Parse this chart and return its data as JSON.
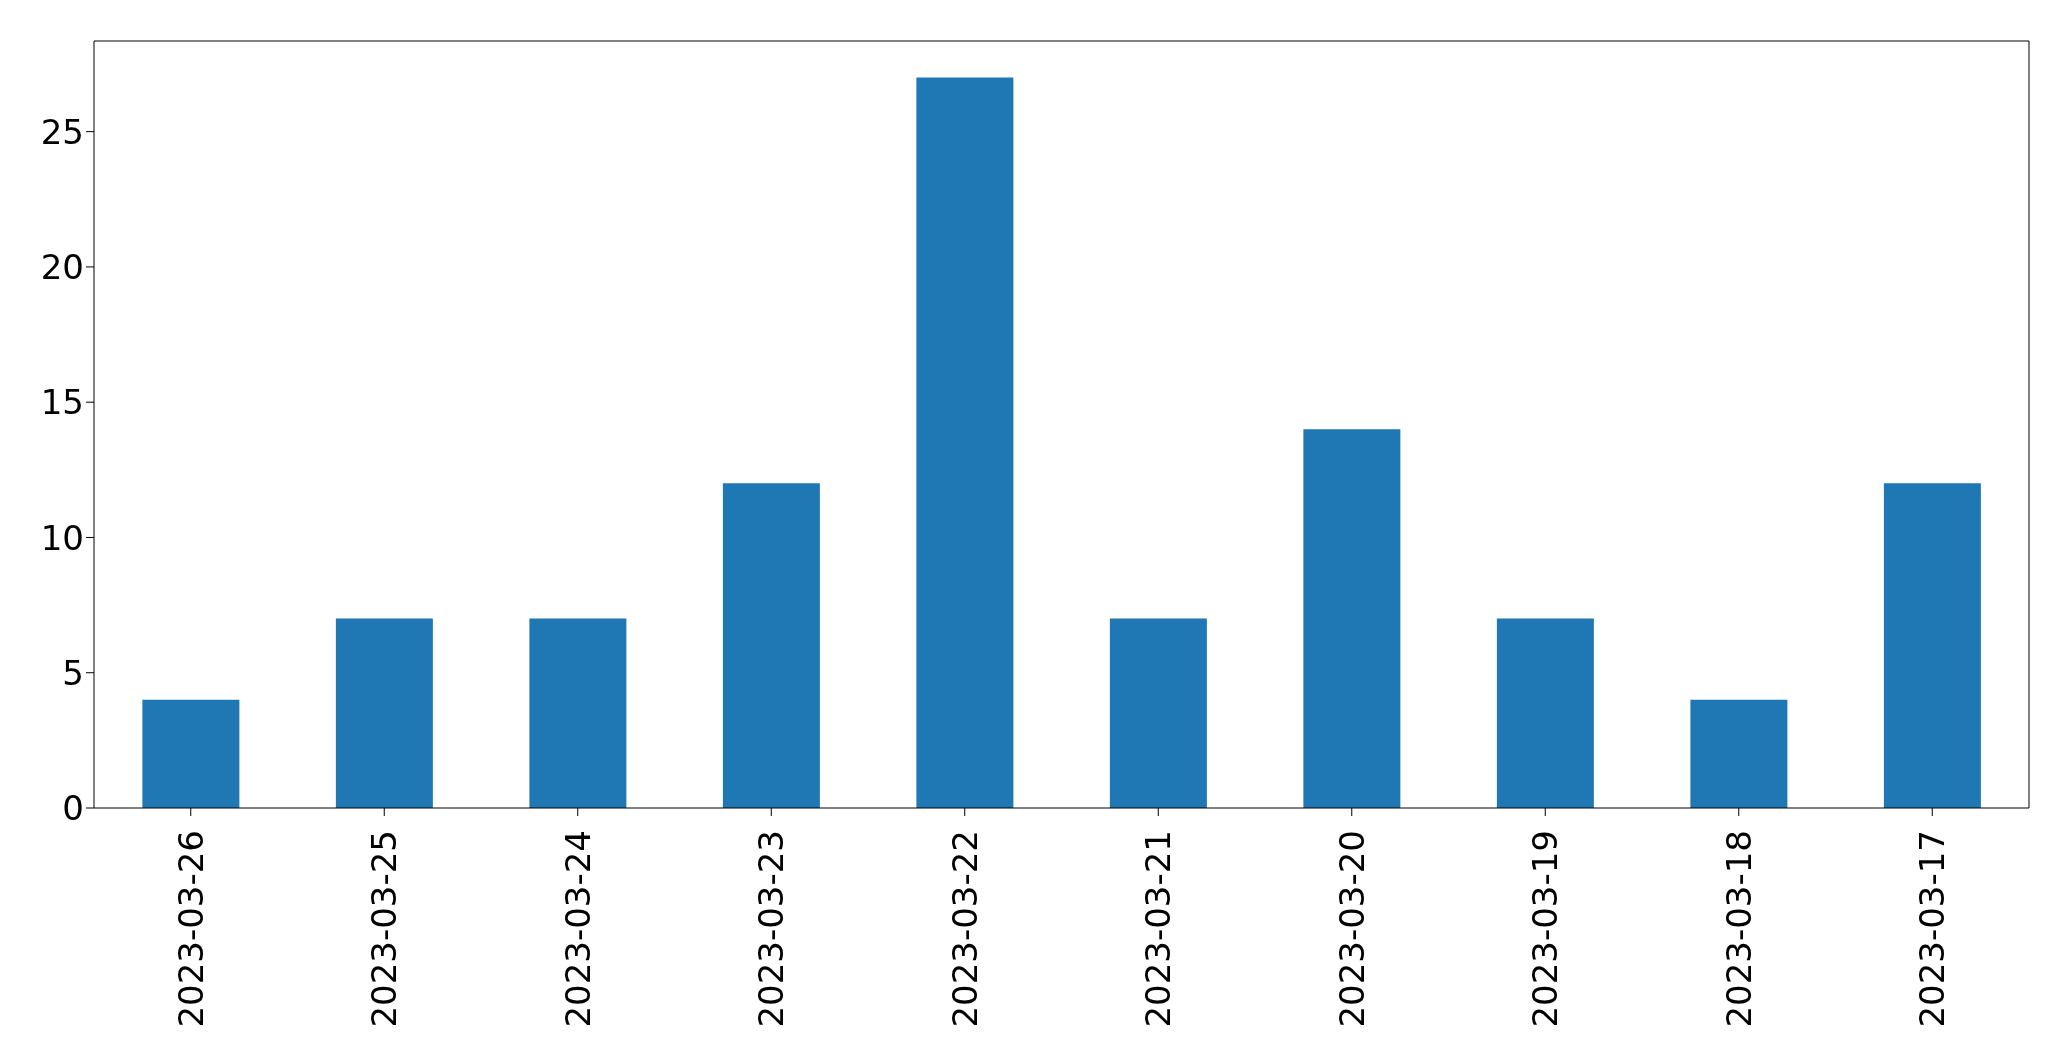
{
  "chart_data": {
    "type": "bar",
    "categories": [
      "2023-03-26",
      "2023-03-25",
      "2023-03-24",
      "2023-03-23",
      "2023-03-22",
      "2023-03-21",
      "2023-03-20",
      "2023-03-19",
      "2023-03-18",
      "2023-03-17"
    ],
    "values": [
      4,
      7,
      7,
      12,
      27,
      7,
      14,
      7,
      4,
      12
    ],
    "color": "#1f77b4",
    "ylim": [
      0,
      28.35
    ],
    "yticks": [
      0,
      5,
      10,
      15,
      20,
      25
    ],
    "grid": false,
    "legend": false
  }
}
